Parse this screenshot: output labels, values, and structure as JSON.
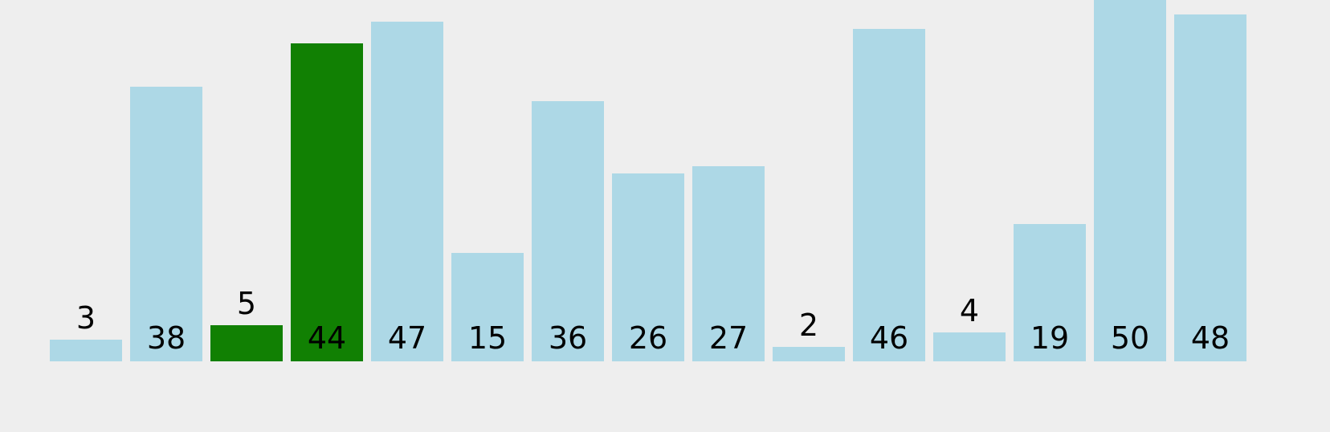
{
  "chart_data": {
    "type": "bar",
    "values": [
      3,
      38,
      5,
      44,
      47,
      15,
      36,
      26,
      27,
      2,
      46,
      4,
      19,
      50,
      48
    ],
    "highlighted_indices": [
      2,
      3
    ],
    "title": "",
    "xlabel": "",
    "ylabel": "",
    "ylim": [
      0,
      50
    ],
    "grid": false,
    "legend": "none"
  },
  "colors": {
    "background": "#eeeeee",
    "bar_default": "#add8e6",
    "bar_highlight": "#118003",
    "label": "#000000"
  }
}
